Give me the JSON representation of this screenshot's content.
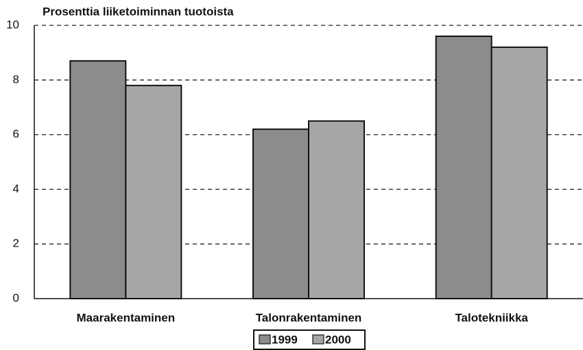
{
  "chart_data": {
    "type": "bar",
    "title": "Prosenttia liiketoiminnan tuotoista",
    "categories": [
      "Maarakentaminen",
      "Talonrakentaminen",
      "Talotekniikka"
    ],
    "series": [
      {
        "name": "1999",
        "color": "#8c8c8c",
        "values": [
          8.7,
          6.2,
          9.6
        ]
      },
      {
        "name": "2000",
        "color": "#a6a6a6",
        "values": [
          7.8,
          6.5,
          9.2
        ]
      }
    ],
    "ylim": [
      0,
      10
    ],
    "yticks": [
      0,
      2,
      4,
      6,
      8,
      10
    ],
    "grid": true,
    "legend": "bottom"
  }
}
